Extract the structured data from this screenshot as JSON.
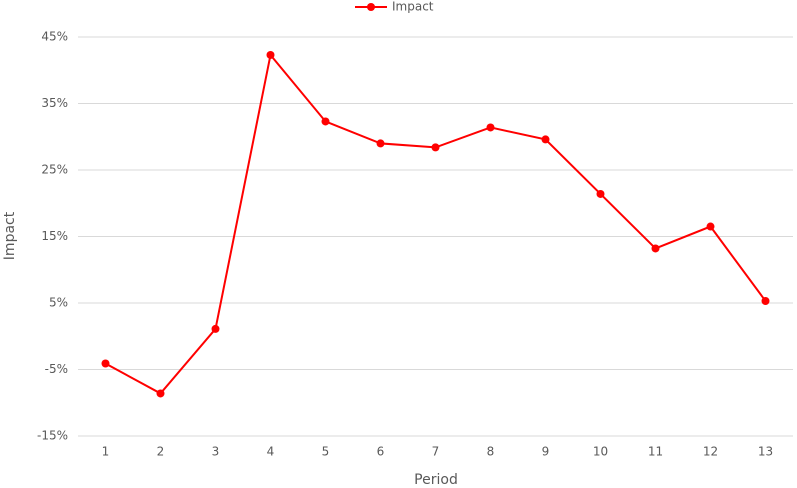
{
  "chart_data": {
    "type": "line",
    "categories": [
      "1",
      "2",
      "3",
      "4",
      "5",
      "6",
      "7",
      "8",
      "9",
      "10",
      "11",
      "12",
      "13"
    ],
    "series": [
      {
        "name": "Impact",
        "color": "#ff0000",
        "values": [
          -4.1,
          -8.6,
          1.1,
          42.3,
          32.3,
          29.0,
          28.4,
          31.4,
          29.6,
          21.4,
          13.2,
          16.5,
          5.3
        ]
      }
    ],
    "x_label": "Period",
    "y_label": "Impact",
    "ylim": [
      -15,
      45
    ],
    "yticks": [
      {
        "value": -15,
        "label": "-15%"
      },
      {
        "value": -5,
        "label": "-5%"
      },
      {
        "value": 5,
        "label": "5%"
      },
      {
        "value": 15,
        "label": "15%"
      },
      {
        "value": 25,
        "label": "25%"
      },
      {
        "value": 35,
        "label": "35%"
      },
      {
        "value": 45,
        "label": "45%"
      }
    ],
    "grid": true,
    "legend": "top"
  }
}
